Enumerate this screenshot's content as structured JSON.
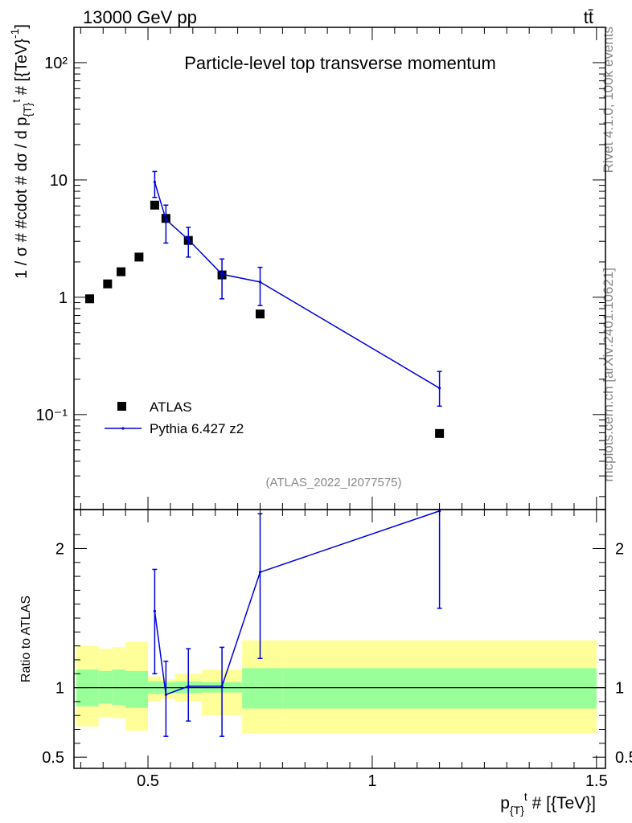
{
  "header": {
    "energy_label": "13000 GeV pp",
    "process_label": "tt̄"
  },
  "side_texts": {
    "version": "Rivet 4.1.0,  100k events",
    "source": "mcplots.cern.ch [arXiv:2401.10621]"
  },
  "colors": {
    "data": "#000000",
    "mc": "#0000dd",
    "band_inner": "#99ff99",
    "band_outer": "#ffff99"
  },
  "chart_data": [
    {
      "type": "scatter",
      "title": "Particle-level top transverse momentum",
      "analysis_tag": "(ATLAS_2022_I2077575)",
      "xlabel": "p_{T}^t # [{TeV}]",
      "ylabel": "1 / σ # #cdot # dσ / d p_{T}^t # [{TeV}^-1]",
      "yscale": "log",
      "xlim": [
        0.335,
        1.52
      ],
      "ylim": [
        0.0155,
        200
      ],
      "x_ticks": [
        0.5,
        1,
        1.5
      ],
      "x_tick_labels": [
        "0.5",
        "1",
        "1.5"
      ],
      "y_ticks": [
        0.1,
        1,
        10,
        100
      ],
      "y_tick_labels": [
        "10⁻¹",
        "1",
        "10",
        "10²"
      ],
      "legend": {
        "position": "bottom-left",
        "entries": [
          "ATLAS",
          "Pythia 6.427 z2"
        ]
      },
      "series": [
        {
          "name": "ATLAS",
          "style": "square-markers",
          "x": [
            0.37,
            0.41,
            0.44,
            0.48,
            0.515,
            0.54,
            0.59,
            0.665,
            0.75,
            1.15
          ],
          "y": [
            0.97,
            1.3,
            1.65,
            2.2,
            6.1,
            4.7,
            3.05,
            1.55,
            0.72,
            0.069
          ]
        },
        {
          "name": "Pythia 6.427 z2",
          "style": "line-with-errors",
          "x": [
            0.515,
            0.54,
            0.59,
            0.665,
            0.75,
            1.15
          ],
          "y": [
            9.6,
            4.6,
            3.1,
            1.57,
            1.35,
            0.168
          ],
          "yerr_low": [
            2.5,
            1.7,
            0.9,
            0.6,
            0.5,
            0.05
          ],
          "yerr_high": [
            2.2,
            1.5,
            0.85,
            0.55,
            0.45,
            0.065
          ]
        }
      ]
    },
    {
      "type": "line",
      "title": "",
      "ylabel": "Ratio to ATLAS",
      "xlim": [
        0.335,
        1.52
      ],
      "ylim": [
        0.42,
        2.28
      ],
      "y_ticks": [
        0.5,
        1,
        2
      ],
      "y_tick_labels": [
        "0.5",
        "1",
        "2"
      ],
      "bands": {
        "x_edges": [
          0.34,
          0.39,
          0.42,
          0.45,
          0.5,
          0.53,
          0.56,
          0.62,
          0.71,
          0.8,
          1.5
        ],
        "inner_low": [
          0.865,
          0.885,
          0.875,
          0.855,
          0.955,
          0.96,
          0.96,
          0.965,
          0.85,
          0.85
        ],
        "inner_high": [
          1.13,
          1.12,
          1.13,
          1.12,
          1.045,
          1.04,
          1.045,
          1.04,
          1.14,
          1.14
        ],
        "outer_low": [
          0.72,
          0.79,
          0.78,
          0.69,
          0.9,
          0.92,
          0.9,
          0.8,
          0.67,
          0.67
        ],
        "outer_high": [
          1.3,
          1.28,
          1.29,
          1.33,
          1.08,
          1.06,
          1.1,
          1.13,
          1.34,
          1.34
        ]
      },
      "series": [
        {
          "name": "Pythia 6.427 z2",
          "x": [
            0.515,
            0.54,
            0.59,
            0.665,
            0.75,
            1.15
          ],
          "y": [
            1.55,
            0.95,
            1.01,
            1.01,
            1.83,
            2.27
          ],
          "yerr_low": [
            0.45,
            0.3,
            0.25,
            0.36,
            0.62,
            0.7
          ],
          "yerr_high": [
            0.3,
            0.24,
            0.27,
            0.28,
            0.42,
            0.05
          ]
        }
      ]
    }
  ]
}
